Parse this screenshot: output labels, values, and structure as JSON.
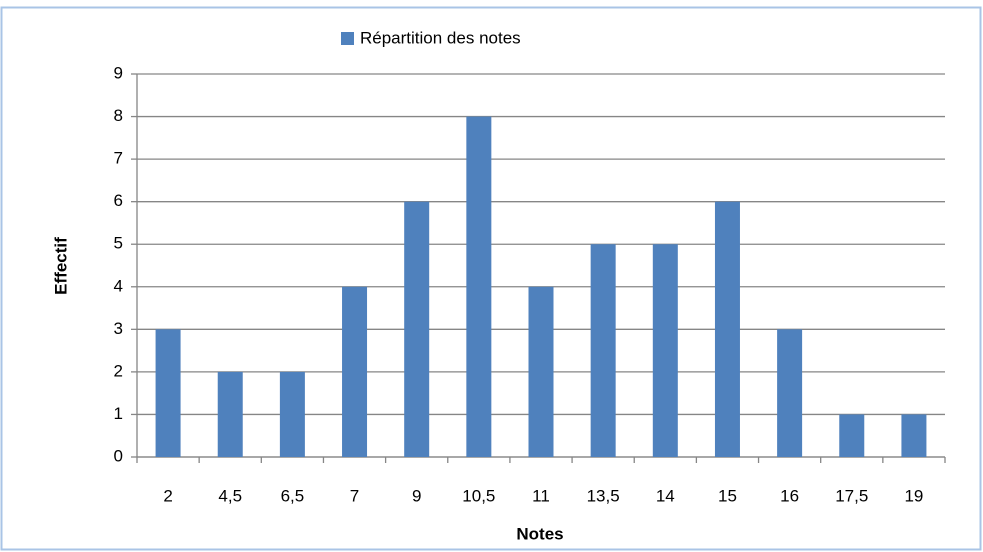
{
  "chart_data": {
    "type": "bar",
    "categories": [
      "2",
      "4,5",
      "6,5",
      "7",
      "9",
      "10,5",
      "11",
      "13,5",
      "14",
      "15",
      "16",
      "17,5",
      "19"
    ],
    "series": [
      {
        "name": "Répartition des notes",
        "color": "#4f81bd",
        "values": [
          3,
          2,
          2,
          4,
          6,
          8,
          4,
          5,
          5,
          6,
          3,
          1,
          1
        ]
      }
    ],
    "x_label": "Notes",
    "y_label": "Effectif",
    "ylim": [
      0,
      9
    ],
    "yticks": [
      0,
      1,
      2,
      3,
      4,
      5,
      6,
      7,
      8,
      9
    ],
    "grid": true,
    "legend": "top"
  }
}
